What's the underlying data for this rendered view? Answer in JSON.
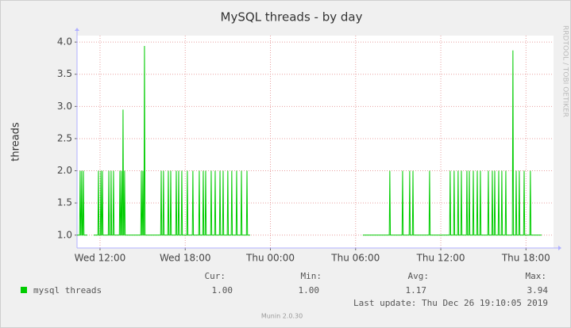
{
  "chart_data": {
    "type": "line",
    "title": "MySQL threads - by day",
    "ylabel": "threads",
    "watermark": "RRDTOOL / TOBI OETIKER",
    "footer": "Munin 2.0.30",
    "last_update": "Last update: Thu Dec 26 19:10:05 2019",
    "grid": true,
    "xlim": [
      10.38,
      43.94
    ],
    "ylim": [
      0.8,
      4.1
    ],
    "xticks": [
      {
        "value": 12,
        "label": "Wed 12:00"
      },
      {
        "value": 18,
        "label": "Wed 18:00"
      },
      {
        "value": 24,
        "label": "Thu 00:00"
      },
      {
        "value": 30,
        "label": "Thu 06:00"
      },
      {
        "value": 36,
        "label": "Thu 12:00"
      },
      {
        "value": 42,
        "label": "Thu 18:00"
      }
    ],
    "yticks": [
      {
        "value": 1,
        "label": "1.0"
      },
      1.5,
      {
        "value": 2,
        "label": "2.0"
      },
      2.5,
      {
        "value": 3,
        "label": "3.0"
      },
      3.5,
      {
        "value": 4,
        "label": "4.0"
      }
    ],
    "legend_stats": {
      "headers": [
        "Cur:",
        "Min:",
        "Avg:",
        "Max:"
      ],
      "values": [
        "1.00",
        "1.00",
        "1.17",
        "3.94"
      ]
    },
    "series": [
      {
        "name": "mysql threads",
        "color": "#00cc00",
        "x": [
          10.38,
          10.56,
          10.6,
          10.64,
          10.67,
          10.71,
          10.75,
          10.79,
          10.83,
          10.87,
          11.11,
          11.33,
          11.55,
          11.85,
          11.89,
          11.93,
          12.02,
          12.06,
          12.1,
          12.13,
          12.17,
          12.21,
          12.58,
          12.62,
          12.66,
          12.74,
          12.78,
          12.82,
          12.91,
          12.95,
          12.99,
          13.36,
          13.4,
          13.44,
          13.47,
          13.51,
          13.55,
          13.58,
          13.62,
          13.66,
          13.69,
          13.73,
          13.77,
          14.87,
          14.91,
          14.95,
          14.98,
          15.02,
          15.06,
          15.09,
          15.13,
          15.17,
          16.27,
          16.31,
          16.35,
          16.43,
          16.47,
          16.51,
          16.77,
          16.81,
          16.85,
          16.94,
          16.98,
          17.02,
          17.33,
          17.37,
          17.41,
          17.5,
          17.54,
          17.58,
          17.72,
          17.76,
          17.8,
          18.11,
          18.15,
          18.19,
          18.5,
          18.54,
          18.58,
          18.95,
          18.99,
          19.03,
          19.23,
          19.27,
          19.31,
          19.4,
          19.44,
          19.48,
          19.79,
          19.83,
          19.87,
          20.07,
          20.11,
          20.15,
          20.41,
          20.45,
          20.49,
          20.63,
          20.67,
          20.71,
          20.96,
          21.0,
          21.04,
          21.24,
          21.28,
          21.32,
          21.58,
          21.62,
          21.66,
          21.92,
          21.96,
          22.0,
          22.31,
          22.35,
          22.39,
          22.57,
          26.5,
          30.51,
          32.37,
          32.41,
          32.45,
          33.27,
          33.31,
          33.35,
          33.77,
          33.81,
          33.85,
          34.0,
          34.04,
          34.08,
          35.17,
          35.21,
          35.25,
          36.62,
          36.66,
          36.7,
          36.9,
          36.94,
          36.98,
          37.18,
          37.22,
          37.26,
          37.41,
          37.45,
          37.49,
          37.8,
          37.84,
          37.88,
          37.97,
          38.01,
          38.05,
          38.25,
          38.29,
          38.33,
          38.53,
          38.57,
          38.61,
          38.75,
          38.79,
          38.83,
          39.31,
          39.35,
          39.39,
          39.59,
          39.63,
          39.67,
          39.76,
          39.8,
          39.84,
          40.04,
          40.08,
          40.12,
          40.26,
          40.3,
          40.34,
          40.54,
          40.58,
          40.62,
          41.04,
          41.08,
          41.12,
          41.27,
          41.31,
          41.35,
          41.49,
          41.53,
          41.57,
          41.83,
          41.87,
          41.91,
          42.27,
          42.31,
          42.35,
          43.1
        ],
        "values": [
          1,
          1,
          2,
          1,
          1,
          2,
          1,
          1,
          2,
          1,
          1,
          null,
          1,
          1,
          2,
          1,
          1,
          2,
          1,
          1,
          2,
          1,
          1,
          2,
          1,
          1,
          2,
          1,
          1,
          2,
          1,
          1,
          2,
          1,
          1,
          2,
          1,
          1,
          2.95,
          1,
          1,
          2,
          1,
          1,
          2,
          1,
          1,
          2,
          1,
          1,
          3.94,
          1,
          1,
          2,
          1,
          1,
          2,
          1,
          1,
          2,
          1,
          1,
          2,
          1,
          1,
          2,
          1,
          1,
          2,
          1,
          1,
          2,
          1,
          1,
          2,
          1,
          1,
          2,
          1,
          1,
          2,
          1,
          1,
          2,
          1,
          1,
          2,
          1,
          1,
          2,
          1,
          1,
          2,
          1,
          1,
          2,
          1,
          1,
          2,
          1,
          1,
          2,
          1,
          1,
          2,
          1,
          1,
          2,
          1,
          1,
          2,
          1,
          1,
          2,
          1,
          1,
          null,
          1,
          1,
          2,
          1,
          1,
          2,
          1,
          1,
          2,
          1,
          1,
          2,
          1,
          1,
          2,
          1,
          1,
          2,
          1,
          1,
          2,
          1,
          1,
          2,
          1,
          1,
          2,
          1,
          1,
          2,
          1,
          1,
          2,
          1,
          1,
          2,
          1,
          1,
          2,
          1,
          1,
          2,
          1,
          1,
          2,
          1,
          1,
          2,
          1,
          1,
          2,
          1,
          1,
          2,
          1,
          1,
          2,
          1,
          1,
          2,
          1,
          1,
          3.87,
          1,
          1,
          2,
          1,
          1,
          2,
          1,
          1,
          2,
          1,
          1,
          2,
          1,
          1
        ]
      }
    ]
  }
}
